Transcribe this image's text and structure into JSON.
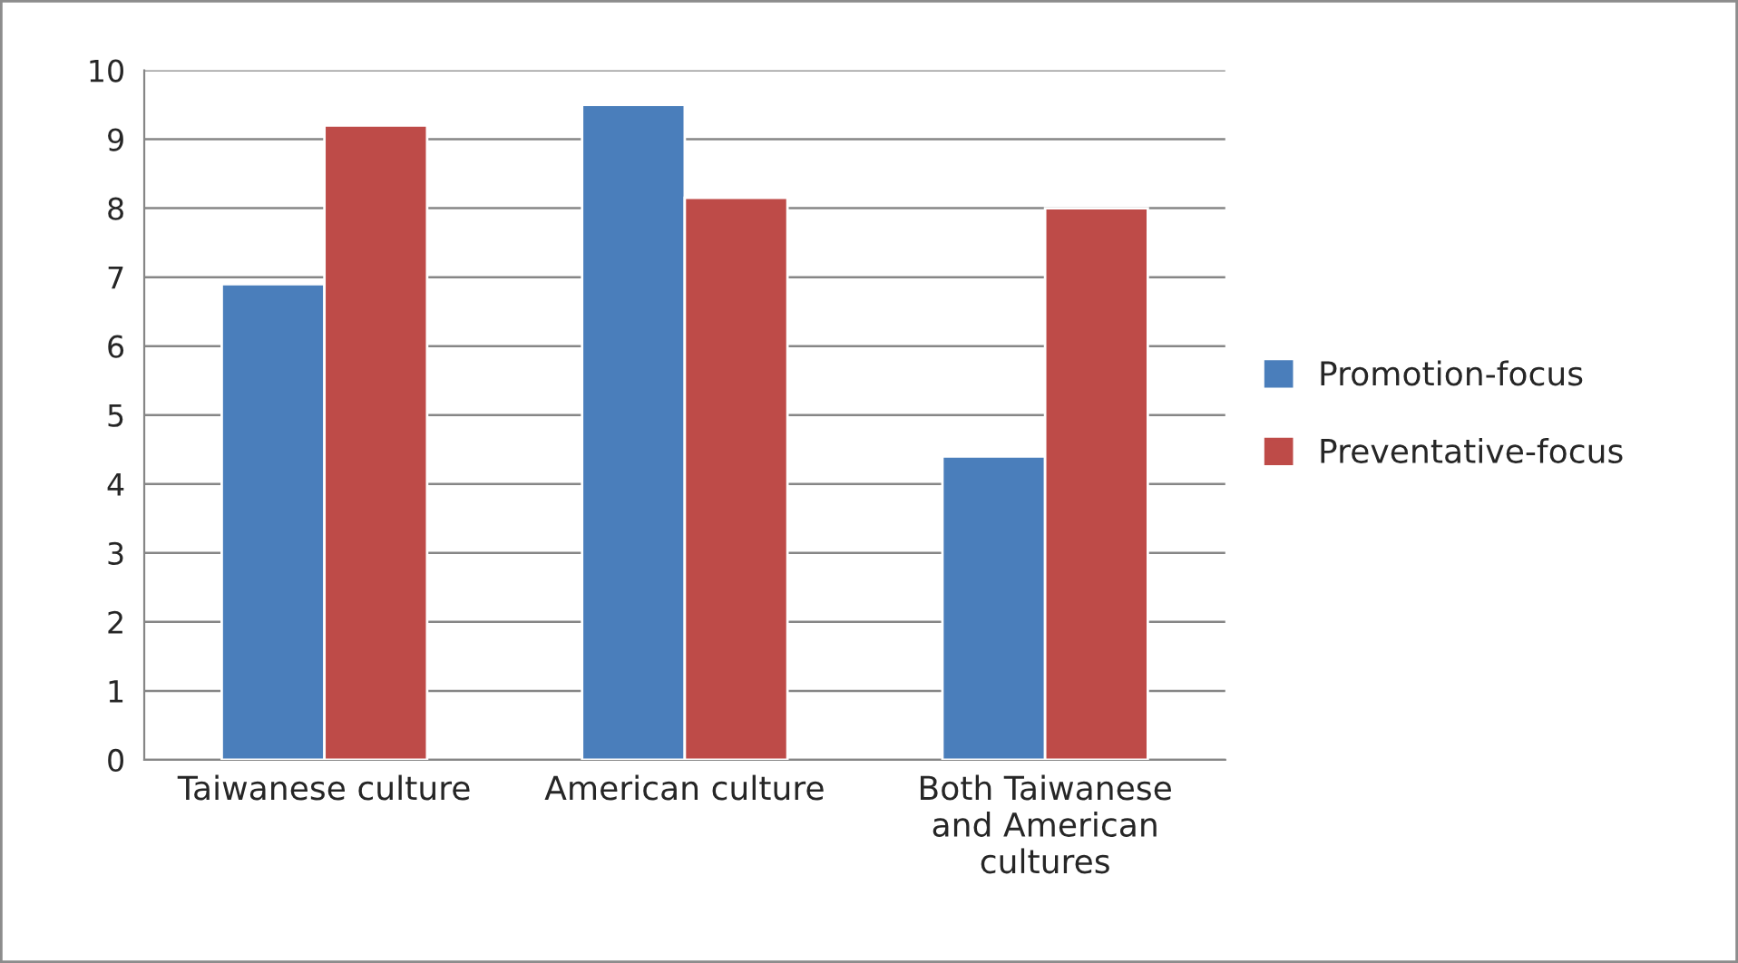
{
  "chart_data": {
    "type": "bar",
    "categories": [
      "Taiwanese culture",
      "American culture",
      "Both Taiwanese\nand American\ncultures"
    ],
    "series": [
      {
        "name": "Promotion-focus",
        "color": "#4a7ebb",
        "values": [
          6.9,
          9.5,
          4.4
        ]
      },
      {
        "name": "Preventative-focus",
        "color": "#be4b48",
        "values": [
          9.2,
          8.15,
          8.0
        ]
      }
    ],
    "ylim": [
      0,
      10
    ],
    "yticks": [
      0,
      1,
      2,
      3,
      4,
      5,
      6,
      7,
      8,
      9,
      10
    ],
    "grid": "y",
    "legend": "right"
  }
}
